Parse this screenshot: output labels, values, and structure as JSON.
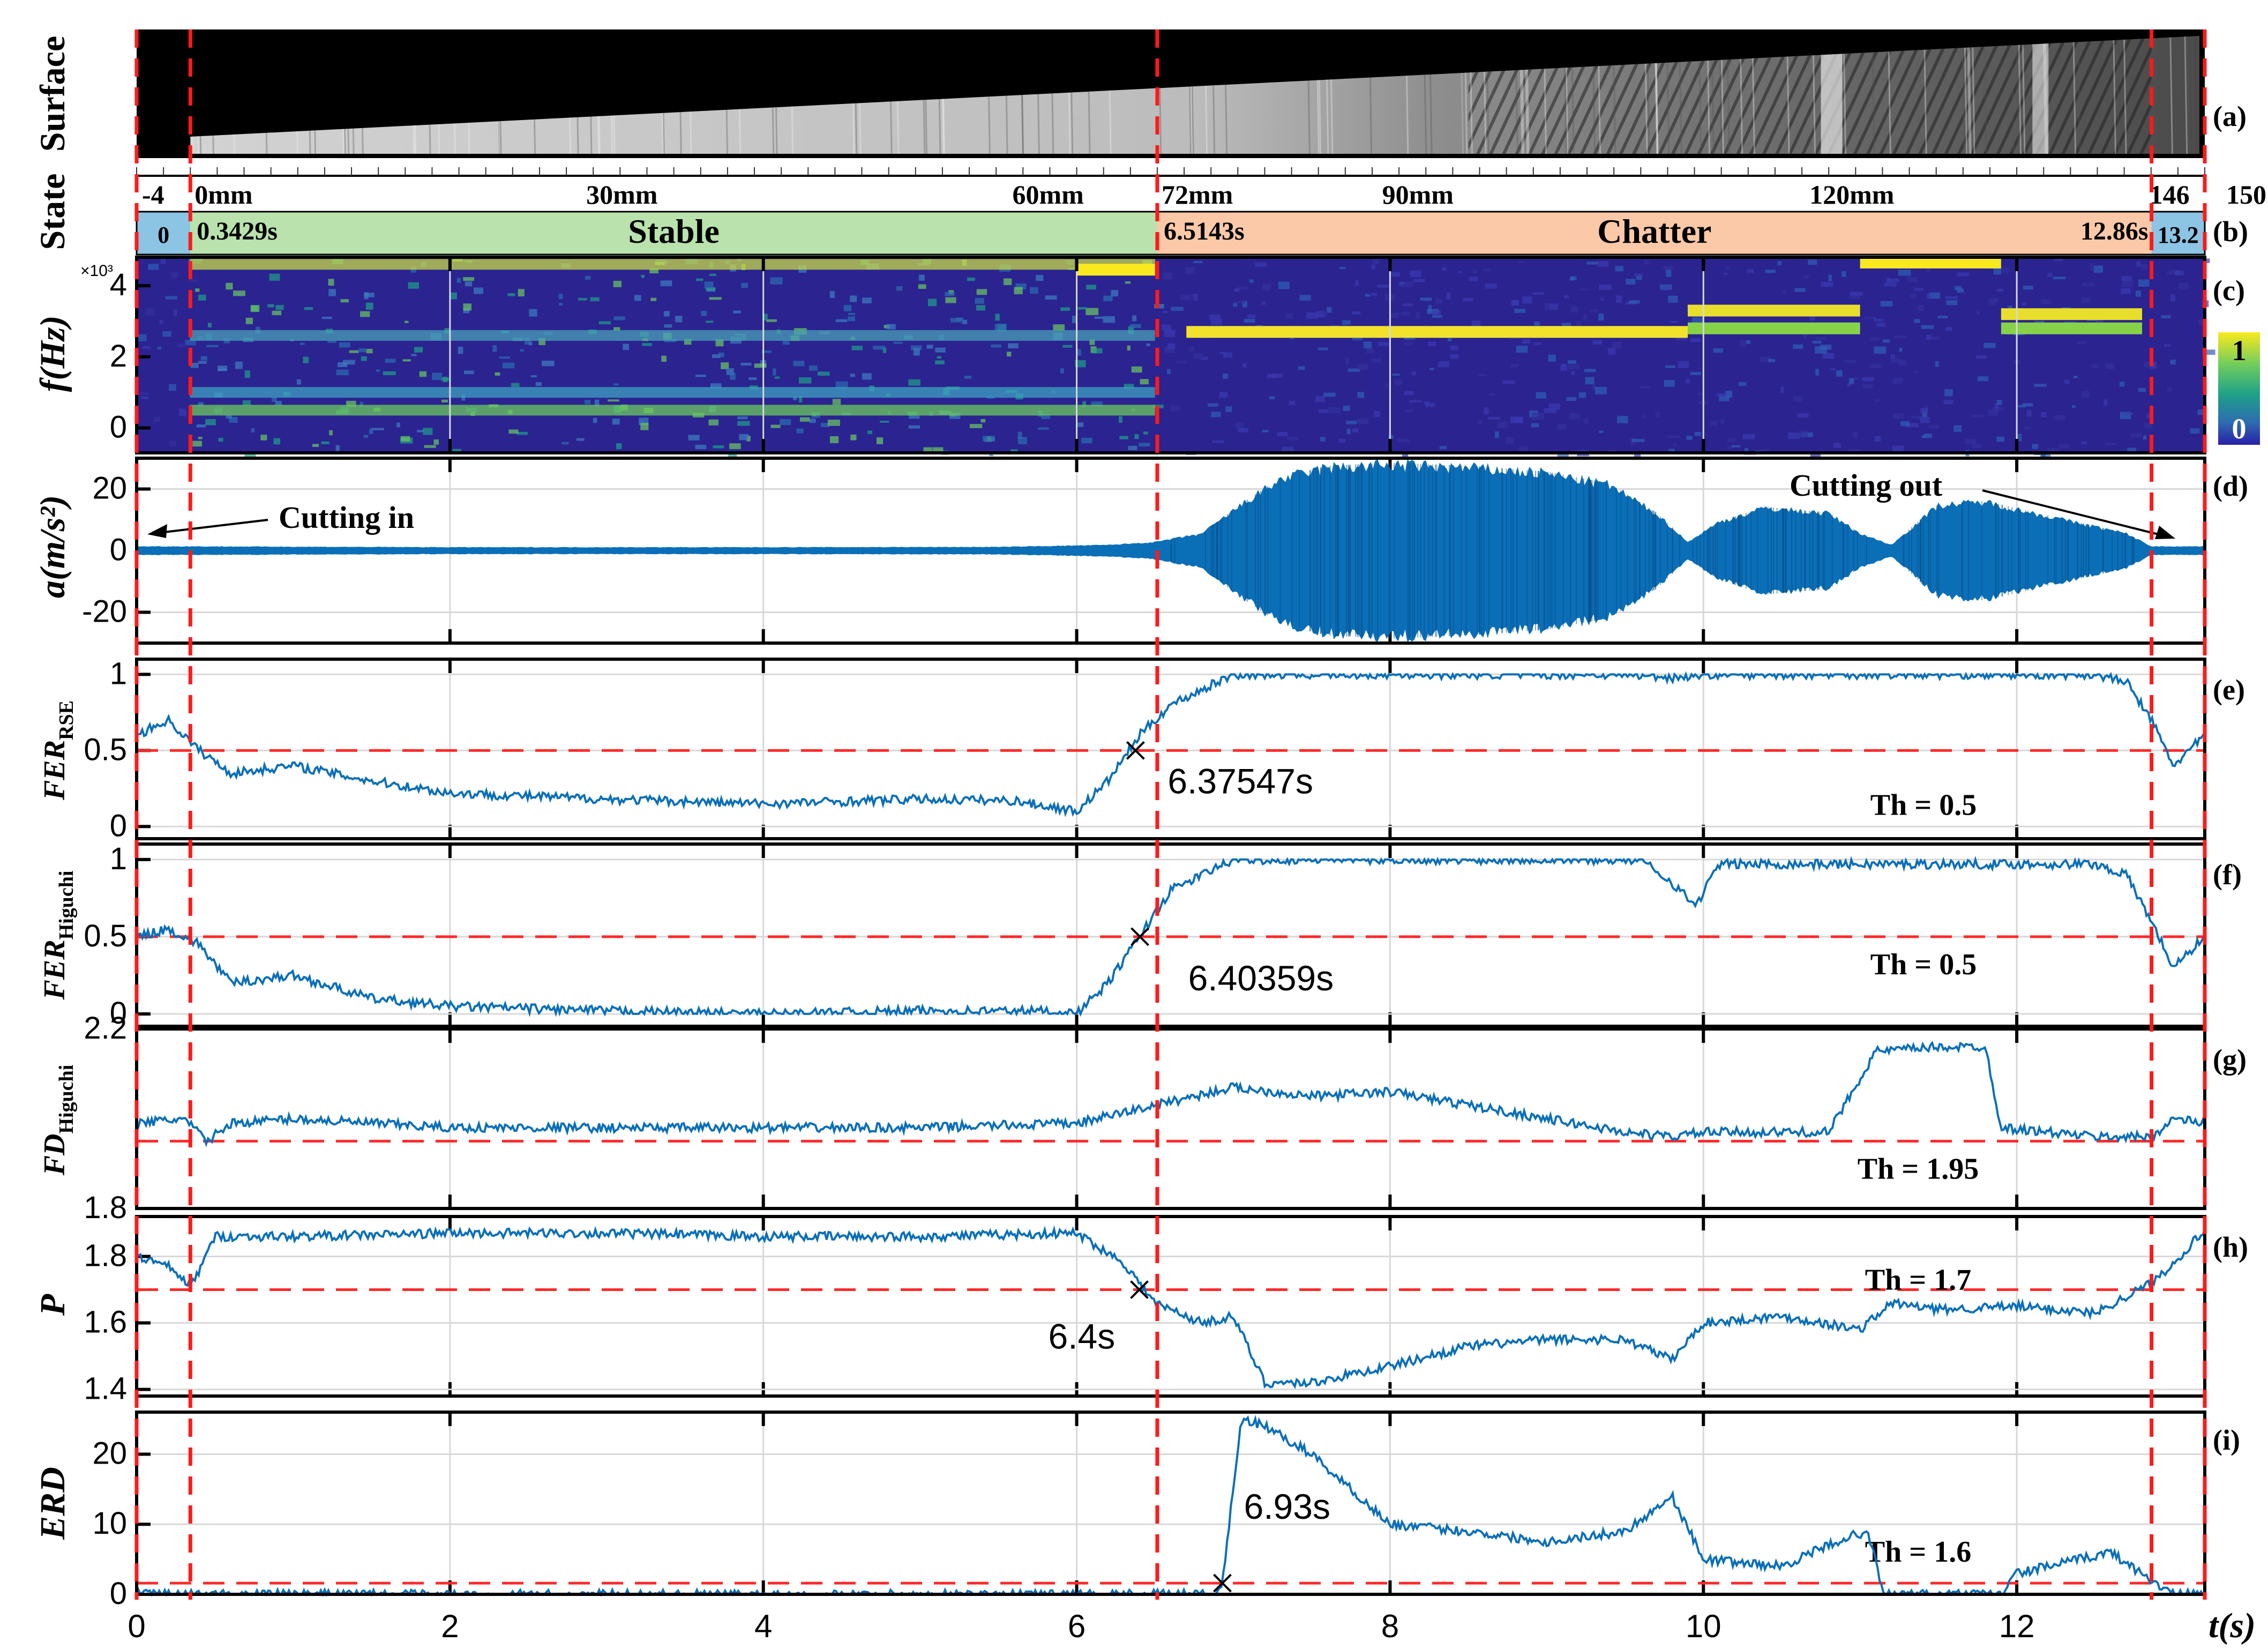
{
  "chart_data": {
    "type": "line",
    "x_axis": {
      "label": "t(s)",
      "ticks": [
        "0",
        "2",
        "4",
        "6",
        "8",
        "10",
        "12"
      ],
      "range": [
        0,
        13.2
      ]
    },
    "boundaries_s": [
      0.3429,
      6.5143,
      12.86
    ],
    "colors": {
      "signal": "#0b6fb8",
      "threshold": "#ff2a2a",
      "boundary": "#ff1a1a",
      "stable": "#b9e2ad",
      "chatter": "#fbc9a7",
      "idle": "#8cc4e4"
    },
    "panels": [
      {
        "tag": "(a)",
        "type": "image",
        "ylabel": "Surface"
      },
      {
        "tag": "(b)",
        "type": "state_bar",
        "ylabel": "State",
        "mm_ticks": [
          {
            "label": "-4",
            "t": 0.0
          },
          {
            "label": "0mm",
            "t": 0.3429
          },
          {
            "label": "30mm",
            "t": 3.07
          },
          {
            "label": "60mm",
            "t": 5.79
          },
          {
            "label": "72mm",
            "t": 6.5143
          },
          {
            "label": "90mm",
            "t": 8.15
          },
          {
            "label": "120mm",
            "t": 10.92
          },
          {
            "label": "146",
            "t": 12.86
          },
          {
            "label": "150",
            "t": 13.2
          }
        ],
        "segments": [
          {
            "state": "idle",
            "from": 0,
            "to": 0.3429,
            "label": "0"
          },
          {
            "state": "stable",
            "from": 0.3429,
            "to": 6.5143,
            "label": "Stable",
            "start_label": "0.3429s"
          },
          {
            "state": "chatter",
            "from": 6.5143,
            "to": 12.86,
            "label": "Chatter",
            "start_label": "6.5143s",
            "end_label": "12.86s"
          },
          {
            "state": "idle",
            "from": 12.86,
            "to": 13.2,
            "label": "13.2"
          }
        ]
      },
      {
        "tag": "(c)",
        "type": "heatmap",
        "ylabel": "f(Hz)",
        "y_exponent": "×10³",
        "yticks": [
          "0",
          "2",
          "4"
        ],
        "ylim": [
          -0.7,
          4.8
        ],
        "colorbar": [
          "1",
          "0"
        ]
      },
      {
        "tag": "(d)",
        "type": "line",
        "ylabel": "a(m/s²)",
        "ylim": [
          -30,
          30
        ],
        "yticks": [
          "-20",
          "0",
          "20"
        ],
        "annotations": [
          "Cutting in",
          "Cutting out"
        ],
        "envelope": {
          "t": [
            0,
            0.34,
            2,
            4,
            5.5,
            6.2,
            6.5,
            6.8,
            7.05,
            7.3,
            7.6,
            8.0,
            8.5,
            9.0,
            9.4,
            9.7,
            9.9,
            10.1,
            10.4,
            10.8,
            11.0,
            11.2,
            11.5,
            11.8,
            12.2,
            12.7,
            12.86,
            13.2
          ],
          "amp": [
            1.5,
            1.5,
            1.2,
            1.2,
            1.3,
            2.0,
            3.0,
            6.0,
            16.0,
            25.0,
            29.0,
            30.0,
            29.0,
            27.0,
            23.0,
            13.0,
            3.0,
            10.0,
            15.0,
            13.0,
            6.0,
            2.0,
            16.0,
            17.0,
            12.0,
            6.0,
            1.5,
            1.5
          ]
        }
      },
      {
        "tag": "(e)",
        "type": "line",
        "ylabel": "FER",
        "ylabel_sub": "RSE",
        "ylim": [
          -0.08,
          1.1
        ],
        "yticks": [
          "0",
          "0.5",
          "1"
        ],
        "threshold": 0.5,
        "threshold_label": "Th = 0.5",
        "detection": {
          "t": 6.37547,
          "y": 0.5,
          "label": "6.37547s"
        },
        "series": {
          "t": [
            0,
            0.2,
            0.4,
            0.6,
            1.0,
            1.5,
            2.0,
            3.0,
            4.0,
            5.0,
            5.6,
            6.0,
            6.2,
            6.4,
            6.6,
            7.0,
            9.5,
            9.8,
            10.0,
            12.5,
            12.7,
            12.86,
            13.0,
            13.2
          ],
          "y": [
            0.6,
            0.7,
            0.5,
            0.35,
            0.4,
            0.3,
            0.22,
            0.18,
            0.15,
            0.18,
            0.17,
            0.1,
            0.3,
            0.6,
            0.8,
            1.0,
            1.0,
            0.98,
            1.0,
            1.0,
            0.95,
            0.7,
            0.4,
            0.6
          ]
        }
      },
      {
        "tag": "(f)",
        "type": "line",
        "ylabel": "FER",
        "ylabel_sub": "Higuchi",
        "ylim": [
          -0.08,
          1.1
        ],
        "yticks": [
          "0",
          "0.5",
          "1"
        ],
        "threshold": 0.5,
        "threshold_label": "Th = 0.5",
        "detection": {
          "t": 6.40359,
          "y": 0.5,
          "label": "6.40359s"
        },
        "series": {
          "t": [
            0,
            0.2,
            0.4,
            0.6,
            1.0,
            1.5,
            2.0,
            3.0,
            4.0,
            5.0,
            5.8,
            6.0,
            6.2,
            6.4,
            6.6,
            7.0,
            9.6,
            9.8,
            9.95,
            10.1,
            12.5,
            12.7,
            12.86,
            13.0,
            13.2
          ],
          "y": [
            0.5,
            0.55,
            0.45,
            0.2,
            0.25,
            0.1,
            0.05,
            0.02,
            0.0,
            0.02,
            0.02,
            0.0,
            0.2,
            0.5,
            0.8,
            1.0,
            1.0,
            0.85,
            0.7,
            0.97,
            0.97,
            0.9,
            0.6,
            0.3,
            0.5
          ]
        }
      },
      {
        "tag": "(g)",
        "type": "line",
        "ylabel": "FD",
        "ylabel_sub": "Higuchi",
        "ylim": [
          1.8,
          2.2
        ],
        "yticks": [
          "1.8",
          "2.2"
        ],
        "threshold": 1.95,
        "threshold_label": "Th = 1.95",
        "series": {
          "t": [
            0,
            0.3,
            0.45,
            0.6,
            1.0,
            2.0,
            3.0,
            4.0,
            5.0,
            6.0,
            6.5,
            7.0,
            7.5,
            8.0,
            8.5,
            9.0,
            9.5,
            9.8,
            10.0,
            10.8,
            11.1,
            11.5,
            11.8,
            11.9,
            12.5,
            12.86,
            13.0,
            13.2
          ],
          "y": [
            1.99,
            2.0,
            1.95,
            1.99,
            2.0,
            1.98,
            1.98,
            1.98,
            1.98,
            1.99,
            2.03,
            2.07,
            2.05,
            2.06,
            2.03,
            2.0,
            1.97,
            1.96,
            1.97,
            1.97,
            2.15,
            2.16,
            2.16,
            1.98,
            1.96,
            1.96,
            2.0,
            1.99
          ]
        }
      },
      {
        "tag": "(h)",
        "type": "line",
        "ylabel": "P",
        "ylim": [
          1.38,
          1.92
        ],
        "yticks": [
          "1.4",
          "1.6",
          "1.8"
        ],
        "threshold": 1.7,
        "threshold_label": "Th = 1.7",
        "detection": {
          "t": 6.4,
          "y": 1.7,
          "label": "6.4s"
        },
        "series": {
          "t": [
            0,
            0.2,
            0.35,
            0.5,
            1.0,
            2.0,
            3.0,
            4.0,
            5.0,
            6.0,
            6.3,
            6.5,
            6.8,
            7.0,
            7.2,
            7.5,
            8.0,
            8.5,
            9.0,
            9.5,
            9.8,
            10.0,
            10.5,
            11.0,
            11.2,
            11.5,
            12.0,
            12.5,
            12.86,
            13.0,
            13.2
          ],
          "y": [
            1.8,
            1.77,
            1.71,
            1.86,
            1.86,
            1.87,
            1.87,
            1.86,
            1.86,
            1.87,
            1.78,
            1.66,
            1.6,
            1.62,
            1.42,
            1.42,
            1.47,
            1.53,
            1.55,
            1.55,
            1.49,
            1.6,
            1.62,
            1.58,
            1.66,
            1.64,
            1.65,
            1.63,
            1.72,
            1.78,
            1.88
          ]
        }
      },
      {
        "tag": "(i)",
        "type": "line",
        "ylabel": "ERD",
        "ylim": [
          0,
          26
        ],
        "yticks": [
          "0",
          "10",
          "20"
        ],
        "threshold": 1.6,
        "threshold_label": "Th = 1.6",
        "detection": {
          "t": 6.93,
          "y": 1.6,
          "label": "6.93s"
        },
        "series": {
          "t": [
            0,
            1.0,
            3.0,
            5.0,
            6.0,
            6.9,
            6.93,
            7.05,
            7.2,
            7.5,
            7.8,
            8.0,
            8.5,
            9.0,
            9.5,
            9.8,
            10.0,
            10.5,
            10.9,
            11.05,
            11.15,
            11.9,
            12.0,
            12.6,
            12.86,
            13.0,
            13.2
          ],
          "y": [
            0,
            0,
            0,
            0,
            0,
            0,
            1.6,
            25,
            24,
            20,
            14,
            10,
            9,
            7.5,
            9,
            14,
            5,
            4,
            8,
            9,
            0,
            0,
            3,
            6,
            2,
            0,
            0
          ]
        }
      }
    ]
  }
}
